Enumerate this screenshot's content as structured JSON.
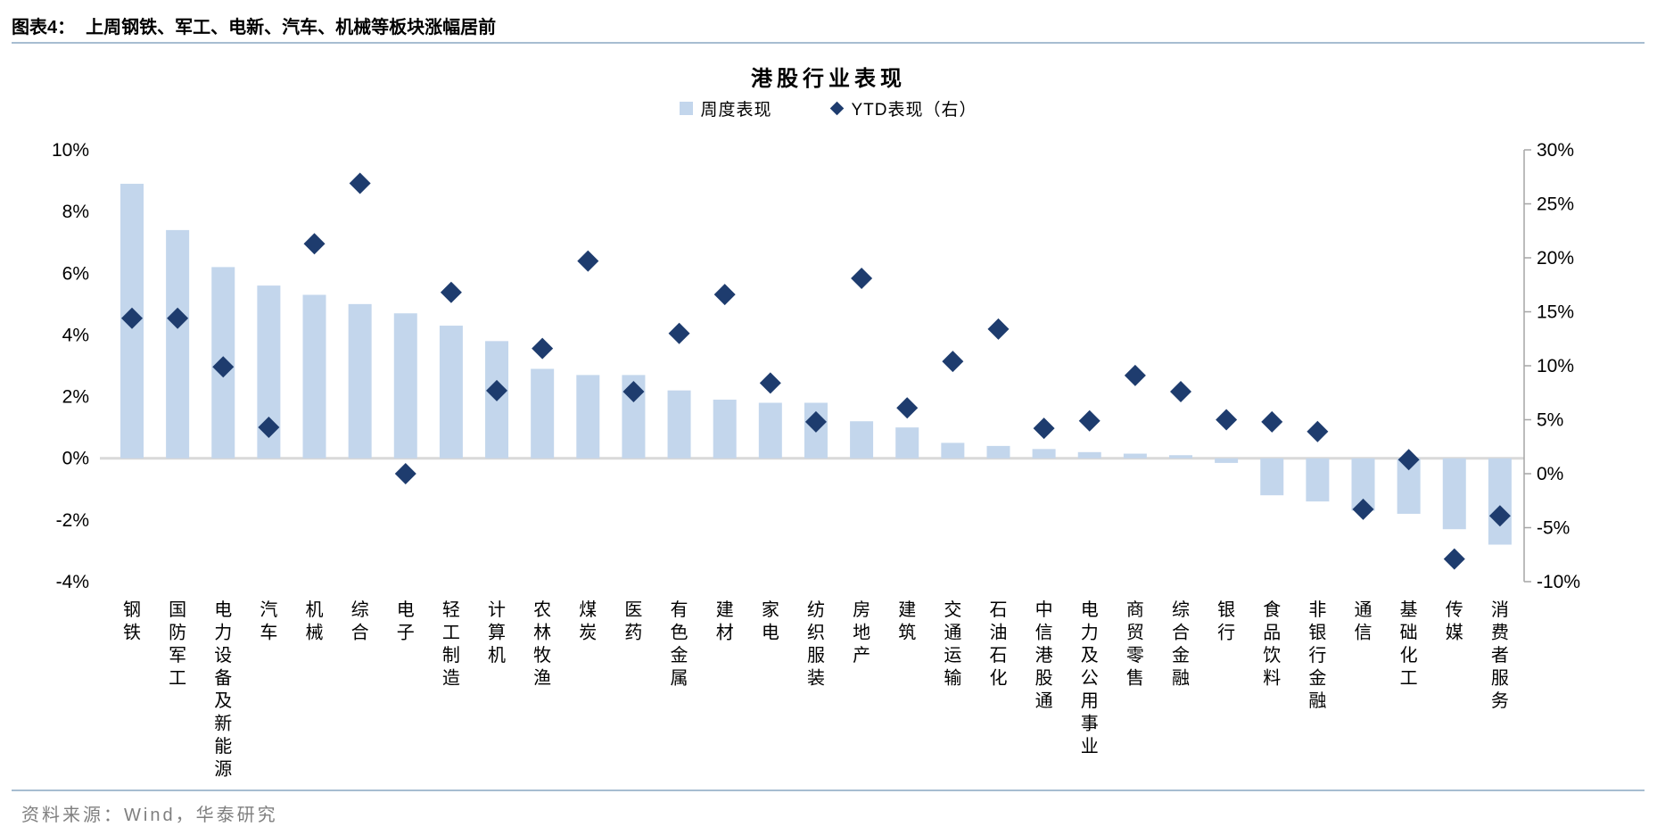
{
  "figure": {
    "label": "图表4：",
    "title": "上周钢铁、军工、电新、汽车、机械等板块涨幅居前"
  },
  "chart": {
    "title": "港股行业表现",
    "legend": {
      "weekly": "周度表现",
      "ytd": "YTD表现（右）"
    }
  },
  "chart_data": {
    "type": "bar",
    "title": "港股行业表现",
    "categories": [
      "钢铁",
      "国防军工",
      "电力设备及新能源",
      "汽车",
      "机械",
      "综合",
      "电子",
      "轻工制造",
      "计算机",
      "农林牧渔",
      "煤炭",
      "医药",
      "有色金属",
      "建材",
      "家电",
      "纺织服装",
      "房地产",
      "建筑",
      "交通运输",
      "石油石化",
      "中信港股通",
      "电力及公用事业",
      "商贸零售",
      "综合金融",
      "银行",
      "食品饮料",
      "非银行金融",
      "通信",
      "基础化工",
      "传媒",
      "消费者服务"
    ],
    "series": [
      {
        "name": "周度表现",
        "type": "bar",
        "axis": "left",
        "unit": "%",
        "values": [
          8.9,
          7.4,
          6.2,
          5.6,
          5.3,
          5.0,
          4.7,
          4.3,
          3.8,
          2.9,
          2.7,
          2.7,
          2.2,
          1.9,
          1.8,
          1.8,
          1.2,
          1.0,
          0.5,
          0.4,
          0.3,
          0.2,
          0.15,
          0.1,
          -0.15,
          -1.2,
          -1.4,
          -1.7,
          -1.8,
          -2.3,
          -2.8
        ]
      },
      {
        "name": "YTD表现（右）",
        "type": "scatter",
        "marker": "diamond",
        "axis": "right",
        "unit": "%",
        "values": [
          14.4,
          14.4,
          9.9,
          4.3,
          21.3,
          26.9,
          0.0,
          16.8,
          7.7,
          11.6,
          19.7,
          7.6,
          13.0,
          16.6,
          8.4,
          4.8,
          18.1,
          6.1,
          10.4,
          13.4,
          4.2,
          4.9,
          9.1,
          7.6,
          5.0,
          4.8,
          3.9,
          -3.3,
          1.3,
          -7.9,
          -3.9
        ]
      }
    ],
    "left_axis": {
      "min": -4,
      "max": 10,
      "ticks": [
        "10%",
        "8%",
        "6%",
        "4%",
        "2%",
        "0%",
        "-2%",
        "-4%"
      ]
    },
    "right_axis": {
      "min": -10,
      "max": 30,
      "ticks": [
        "30%",
        "25%",
        "20%",
        "15%",
        "10%",
        "5%",
        "0%",
        "-5%",
        "-10%"
      ]
    },
    "grid": "zero-line-only",
    "legend_position": "top-center",
    "colors": {
      "bar": "#C3D6EC",
      "marker": "#1E3C6E",
      "zero_line": "#D9D9D9",
      "axis_line": "#A6A6A6",
      "text": "#000000",
      "source_text": "#7F7F7F",
      "rule": "#A7BDD1"
    }
  },
  "footer": {
    "source": "资料来源：Wind，华泰研究"
  }
}
